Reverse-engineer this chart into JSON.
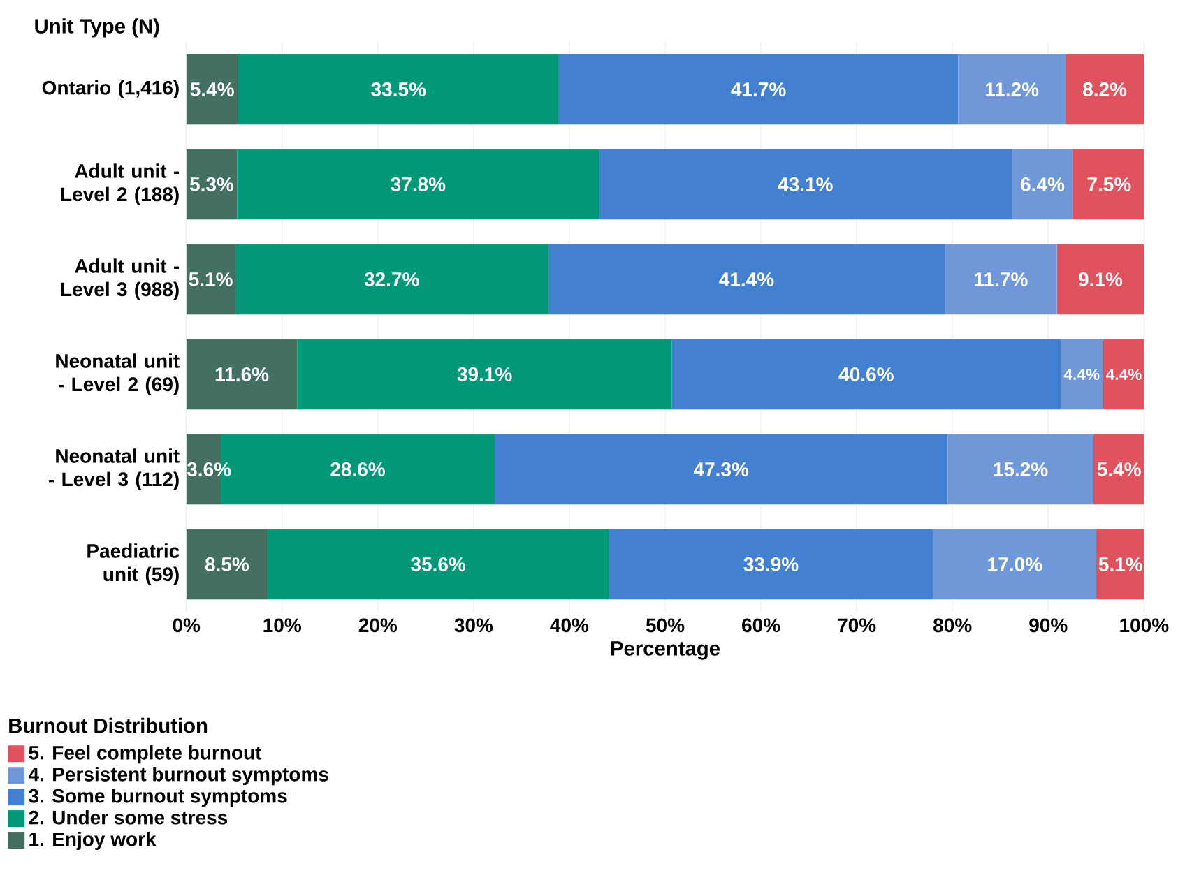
{
  "chart_data": {
    "type": "bar",
    "orientation": "horizontal",
    "stacked": true,
    "ylabel": "Unit Type (N)",
    "xlabel": "Percentage",
    "legend_title": "Burnout Distribution",
    "legend": "bottom left",
    "grid": "x",
    "categories": [
      "Ontario (1,416)",
      "Adult unit - Level 2 (188)",
      "Adult unit - Level 3 (988)",
      "Neonatal unit - Level 2 (69)",
      "Neonatal unit - Level 3 (112)",
      "Paediatric unit (59)"
    ],
    "xlim": [
      0,
      100
    ],
    "xticks": [
      {
        "value": 0,
        "label": "0%"
      },
      {
        "value": 10,
        "label": "10%"
      },
      {
        "value": 20,
        "label": "20%"
      },
      {
        "value": 30,
        "label": "30%"
      },
      {
        "value": 40,
        "label": "40%"
      },
      {
        "value": 50,
        "label": "50%"
      },
      {
        "value": 60,
        "label": "60%"
      },
      {
        "value": 70,
        "label": "70%"
      },
      {
        "value": 80,
        "label": "80%"
      },
      {
        "value": 90,
        "label": "90%"
      },
      {
        "value": 100,
        "label": "100%"
      }
    ],
    "series": [
      {
        "name": "1. Enjoy work",
        "color": "#44705f",
        "values": [
          5.4,
          5.3,
          5.1,
          11.6,
          3.6,
          8.5
        ],
        "value_labels": [
          "5.4%",
          "5.3%",
          "5.1%",
          "11.6%",
          "3.6%",
          "8.5%"
        ]
      },
      {
        "name": "2. Under some stress",
        "color": "#03977a",
        "values": [
          33.5,
          37.8,
          32.7,
          39.1,
          28.6,
          35.6
        ],
        "value_labels": [
          "33.5%",
          "37.8%",
          "32.7%",
          "39.1%",
          "28.6%",
          "35.6%"
        ]
      },
      {
        "name": "3. Some burnout symptoms",
        "color": "#4380cf",
        "values": [
          41.7,
          43.1,
          41.4,
          40.6,
          47.3,
          33.9
        ],
        "value_labels": [
          "41.7%",
          "43.1%",
          "41.4%",
          "40.6%",
          "47.3%",
          "33.9%"
        ]
      },
      {
        "name": "4. Persistent burnout symptoms",
        "color": "#7098d8",
        "values": [
          11.2,
          6.4,
          11.7,
          4.4,
          15.2,
          17.0
        ],
        "value_labels": [
          "11.2%",
          "6.4%",
          "11.7%",
          "4.4%",
          "15.2%",
          "17.0%"
        ]
      },
      {
        "name": "5. Feel complete burnout",
        "color": "#e0525d",
        "values": [
          8.2,
          7.5,
          9.1,
          4.4,
          5.4,
          5.1
        ],
        "value_labels": [
          "8.2%",
          "7.5%",
          "9.1%",
          "4.4%",
          "5.4%",
          "5.1%"
        ]
      }
    ]
  }
}
